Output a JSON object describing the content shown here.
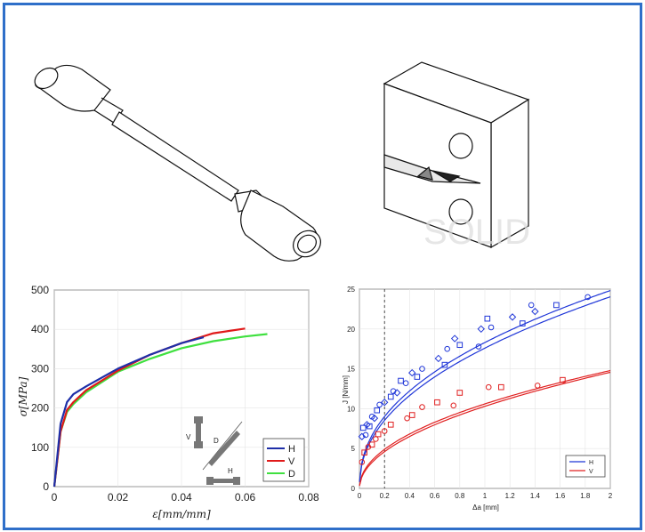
{
  "colors": {
    "frame": "#2f6fc9",
    "H": "#1e2fa8",
    "V": "#e01a1a",
    "D": "#3fe03f",
    "jH": "#1f36d8",
    "jV": "#e02020"
  },
  "watermark": "SOLID",
  "chart_data": [
    {
      "type": "line",
      "title": "",
      "xlabel": "ε[mm/mm]",
      "ylabel": "σ[MPa]",
      "xlim": [
        0,
        0.08
      ],
      "ylim": [
        0,
        500
      ],
      "xticks": [
        "0",
        "0.02",
        "0.04",
        "0.06",
        "0.08"
      ],
      "yticks": [
        "0",
        "100",
        "200",
        "300",
        "400",
        "500"
      ],
      "legend": "bottom-right",
      "inset_labels": [
        "V",
        "D",
        "H"
      ],
      "series": [
        {
          "name": "H",
          "x": [
            0,
            0.002,
            0.004,
            0.006,
            0.01,
            0.02,
            0.03,
            0.04,
            0.047
          ],
          "y": [
            0,
            160,
            215,
            235,
            255,
            300,
            335,
            365,
            380
          ]
        },
        {
          "name": "V",
          "x": [
            0,
            0.002,
            0.004,
            0.006,
            0.01,
            0.02,
            0.03,
            0.04,
            0.05,
            0.06
          ],
          "y": [
            0,
            140,
            195,
            215,
            245,
            295,
            335,
            365,
            390,
            402
          ]
        },
        {
          "name": "D",
          "x": [
            0,
            0.002,
            0.004,
            0.006,
            0.01,
            0.02,
            0.03,
            0.04,
            0.05,
            0.06,
            0.067
          ],
          "y": [
            0,
            140,
            190,
            210,
            240,
            292,
            325,
            352,
            370,
            382,
            388
          ]
        }
      ]
    },
    {
      "type": "scatter",
      "title": "",
      "xlabel": "Δa [mm]",
      "ylabel": "J [N/mm]",
      "xlim": [
        0,
        2
      ],
      "ylim": [
        0,
        25
      ],
      "xticks": [
        "0",
        "0.2",
        "0.4",
        "0.6",
        "0.8",
        "1",
        "1.2",
        "1.4",
        "1.6",
        "1.8",
        "2"
      ],
      "yticks": [
        "0",
        "5",
        "10",
        "15",
        "20",
        "25"
      ],
      "legend": "bottom-right",
      "vline_x": 0.2,
      "series": [
        {
          "name": "H",
          "fit": {
            "C": 18.3,
            "m": 0.44
          },
          "fit2": {
            "C": 17.6,
            "m": 0.45
          },
          "points": [
            [
              0.02,
              6.5
            ],
            [
              0.03,
              7.6
            ],
            [
              0.05,
              6.7
            ],
            [
              0.06,
              8.0
            ],
            [
              0.08,
              7.8
            ],
            [
              0.1,
              9.0
            ],
            [
              0.12,
              8.8
            ],
            [
              0.14,
              9.8
            ],
            [
              0.16,
              10.5
            ],
            [
              0.2,
              10.8
            ],
            [
              0.25,
              11.5
            ],
            [
              0.27,
              12.2
            ],
            [
              0.3,
              12.0
            ],
            [
              0.33,
              13.5
            ],
            [
              0.37,
              13.2
            ],
            [
              0.42,
              14.5
            ],
            [
              0.46,
              14.0
            ],
            [
              0.5,
              15.0
            ],
            [
              0.63,
              16.3
            ],
            [
              0.68,
              15.5
            ],
            [
              0.7,
              17.5
            ],
            [
              0.76,
              18.8
            ],
            [
              0.8,
              18.0
            ],
            [
              0.95,
              17.8
            ],
            [
              0.97,
              20.0
            ],
            [
              1.02,
              21.3
            ],
            [
              1.05,
              20.2
            ],
            [
              1.22,
              21.5
            ],
            [
              1.3,
              20.7
            ],
            [
              1.37,
              23.0
            ],
            [
              1.4,
              22.2
            ],
            [
              1.57,
              23.0
            ],
            [
              1.82,
              24.0
            ]
          ]
        },
        {
          "name": "V",
          "fit": {
            "C": 10.6,
            "m": 0.48
          },
          "fit2": {
            "C": 10.3,
            "m": 0.5
          },
          "points": [
            [
              0.02,
              3.3
            ],
            [
              0.04,
              4.5
            ],
            [
              0.07,
              5.2
            ],
            [
              0.1,
              5.5
            ],
            [
              0.13,
              6.2
            ],
            [
              0.15,
              6.8
            ],
            [
              0.2,
              7.2
            ],
            [
              0.25,
              8.0
            ],
            [
              0.38,
              8.8
            ],
            [
              0.42,
              9.2
            ],
            [
              0.5,
              10.2
            ],
            [
              0.62,
              10.8
            ],
            [
              0.75,
              10.4
            ],
            [
              0.8,
              12.0
            ],
            [
              1.03,
              12.7
            ],
            [
              1.13,
              12.7
            ],
            [
              1.42,
              12.9
            ],
            [
              1.62,
              13.6
            ]
          ]
        }
      ]
    }
  ]
}
